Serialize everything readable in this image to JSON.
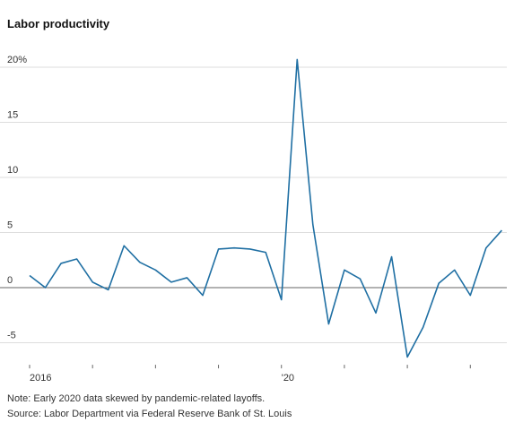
{
  "chart_data": {
    "type": "line",
    "title": "Labor productivity",
    "x": [
      2016,
      2016.25,
      2016.5,
      2016.75,
      2017,
      2017.25,
      2017.5,
      2017.75,
      2018,
      2018.25,
      2018.5,
      2018.75,
      2019,
      2019.25,
      2019.5,
      2019.75,
      2020,
      2020.25,
      2020.5,
      2020.75,
      2021,
      2021.25,
      2021.5,
      2021.75,
      2022,
      2022.25,
      2022.5,
      2022.75,
      2023,
      2023.25,
      2023.5
    ],
    "series": [
      {
        "color": "#1f6fa3",
        "values": [
          1.1,
          0,
          2.2,
          2.6,
          0.5,
          -0.2,
          3.8,
          2.3,
          1.6,
          0.5,
          0.9,
          -0.7,
          3.5,
          3.6,
          3.5,
          3.2,
          -1.1,
          20.7,
          5.7,
          -3.3,
          1.6,
          0.8,
          -2.3,
          2.8,
          -6.3,
          -3.6,
          0.4,
          1.6,
          -0.7,
          3.6,
          5.2
        ]
      }
    ],
    "xlim": [
      2015.53,
      2023.58
    ],
    "xticks": [
      2016,
      2017,
      2018,
      2019,
      2020,
      2021,
      2022,
      2023
    ],
    "xlabels": [
      {
        "value": 2016,
        "label": "2016"
      },
      {
        "value": 2020,
        "label": "'20"
      }
    ],
    "ylim": [
      -7,
      21
    ],
    "yticks": [
      -5,
      0,
      5,
      10,
      15,
      {
        "value": 20,
        "label": "20%"
      }
    ],
    "grid": true,
    "notes": [
      "Note: Early 2020 data skewed by pandemic-related layoffs.",
      "Source: Labor Department via Federal Reserve Bank of St. Louis"
    ]
  }
}
